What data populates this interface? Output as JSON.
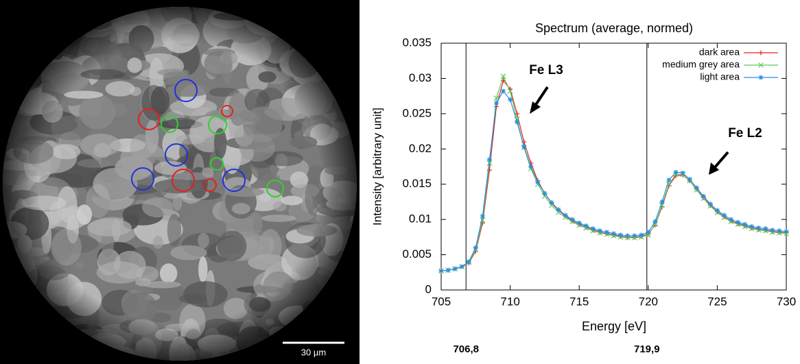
{
  "image": {
    "scale_bar_label": "30 µm"
  },
  "chart_data": {
    "type": "line",
    "title": "Spectrum (average, normed)",
    "x_label": "Energy [eV]",
    "y_label": "Intensity [arbitrary unit]",
    "annotations": [
      "Fe L3",
      "Fe L2"
    ],
    "vlines": [
      {
        "value": 706.8,
        "label": "706,8"
      },
      {
        "value": 719.9,
        "label": "719,9"
      }
    ],
    "xlim": [
      705,
      730
    ],
    "xticks": [
      705,
      710,
      715,
      720,
      725,
      730
    ],
    "ylim": [
      0,
      0.035
    ],
    "yticks": [
      0,
      0.005,
      0.01,
      0.015,
      0.02,
      0.025,
      0.03,
      0.035
    ],
    "legend": "upper right",
    "x": [
      705,
      705.5,
      706,
      706.5,
      707,
      707.5,
      708,
      708.5,
      709,
      709.5,
      710,
      710.5,
      711,
      711.5,
      712,
      712.5,
      713,
      713.5,
      714,
      714.5,
      715,
      715.5,
      716,
      716.5,
      717,
      717.5,
      718,
      718.5,
      719,
      719.5,
      720,
      720.5,
      721,
      721.5,
      722,
      722.5,
      723,
      723.5,
      724,
      724.5,
      725,
      725.5,
      726,
      726.5,
      727,
      727.5,
      728,
      728.5,
      729,
      729.5,
      730
    ],
    "series": [
      {
        "name": "dark area",
        "color": "#e8231c",
        "marker": "+",
        "values": [
          0.0027,
          0.0028,
          0.003,
          0.0033,
          0.0038,
          0.0055,
          0.0095,
          0.017,
          0.026,
          0.0297,
          0.0285,
          0.025,
          0.021,
          0.018,
          0.0155,
          0.0137,
          0.0123,
          0.0113,
          0.0105,
          0.0098,
          0.0093,
          0.0089,
          0.0085,
          0.0082,
          0.008,
          0.0078,
          0.0076,
          0.0075,
          0.0075,
          0.0076,
          0.0079,
          0.0092,
          0.0118,
          0.0148,
          0.0162,
          0.0163,
          0.0155,
          0.0143,
          0.0131,
          0.012,
          0.0111,
          0.0104,
          0.0098,
          0.0094,
          0.0091,
          0.0088,
          0.0086,
          0.0085,
          0.0083,
          0.0082,
          0.0081
        ]
      },
      {
        "name": "medium grey area",
        "color": "#5cc85c",
        "marker": "x",
        "values": [
          0.0027,
          0.0028,
          0.003,
          0.0033,
          0.0039,
          0.0057,
          0.0099,
          0.018,
          0.0272,
          0.0303,
          0.0282,
          0.0242,
          0.0202,
          0.0172,
          0.015,
          0.0133,
          0.012,
          0.011,
          0.0103,
          0.0097,
          0.0092,
          0.0088,
          0.0084,
          0.0081,
          0.0079,
          0.0077,
          0.0075,
          0.0074,
          0.0074,
          0.0075,
          0.0078,
          0.0093,
          0.012,
          0.015,
          0.0164,
          0.0164,
          0.0155,
          0.0142,
          0.013,
          0.0119,
          0.011,
          0.0103,
          0.0097,
          0.0093,
          0.009,
          0.0087,
          0.0085,
          0.0084,
          0.0082,
          0.0081,
          0.008
        ]
      },
      {
        "name": "light area",
        "color": "#2a8de0",
        "marker": "*",
        "values": [
          0.0027,
          0.0028,
          0.003,
          0.0033,
          0.004,
          0.006,
          0.0105,
          0.0185,
          0.0265,
          0.0282,
          0.027,
          0.0238,
          0.0203,
          0.0175,
          0.0153,
          0.0137,
          0.0124,
          0.0114,
          0.0106,
          0.01,
          0.0095,
          0.0091,
          0.0087,
          0.0084,
          0.0082,
          0.008,
          0.0078,
          0.0077,
          0.0077,
          0.0078,
          0.0082,
          0.0097,
          0.0125,
          0.0156,
          0.0167,
          0.0166,
          0.0157,
          0.0145,
          0.0133,
          0.0122,
          0.0113,
          0.0106,
          0.01,
          0.0096,
          0.0093,
          0.009,
          0.0088,
          0.0087,
          0.0085,
          0.0084,
          0.0083
        ]
      }
    ]
  }
}
